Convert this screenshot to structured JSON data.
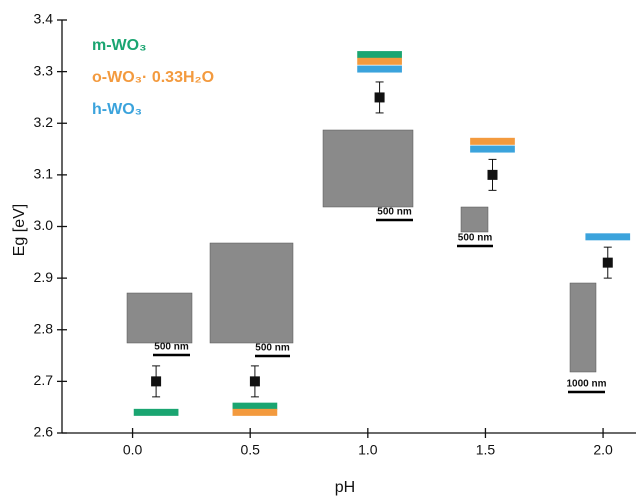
{
  "chart_data": {
    "type": "scatter",
    "x_label": "pH",
    "y_label": "Eg [eV]",
    "x": [
      0.1,
      0.52,
      1.05,
      1.53,
      2.02
    ],
    "series": [
      {
        "color": "#111111",
        "values": [
          2.7,
          2.7,
          3.25,
          3.1,
          2.93
        ],
        "errors": [
          0.03,
          0.03,
          0.03,
          0.03,
          0.03
        ]
      }
    ],
    "phases": [
      {
        "name": "m-WO₃",
        "color": "#1aa571",
        "values": [
          2.64,
          2.652,
          3.333,
          null,
          null
        ]
      },
      {
        "name": "o-WO₃· 0.33H₂O",
        "color": "#f39a3e",
        "values": [
          null,
          2.64,
          3.32,
          3.165,
          null
        ]
      },
      {
        "name": "h-WO₃",
        "color": "#3ba3dc",
        "values": [
          null,
          null,
          3.305,
          3.15,
          2.98
        ]
      }
    ],
    "annotations": [
      "500 nm",
      "500 nm",
      "500 nm",
      "500 nm",
      "1000 nm"
    ],
    "xlim": [
      -0.3,
      2.14
    ],
    "ylim": [
      2.6,
      3.4
    ],
    "xticks": [
      {
        "value": 0,
        "label": "0.0"
      },
      0.5,
      {
        "value": 1,
        "label": "1.0"
      },
      1.5,
      {
        "value": 2,
        "label": "2.0"
      }
    ],
    "yticks": [
      2.6,
      2.7,
      2.8,
      2.9,
      {
        "value": 3,
        "label": "3.0"
      },
      3.1,
      3.2,
      3.3,
      3.4
    ]
  }
}
